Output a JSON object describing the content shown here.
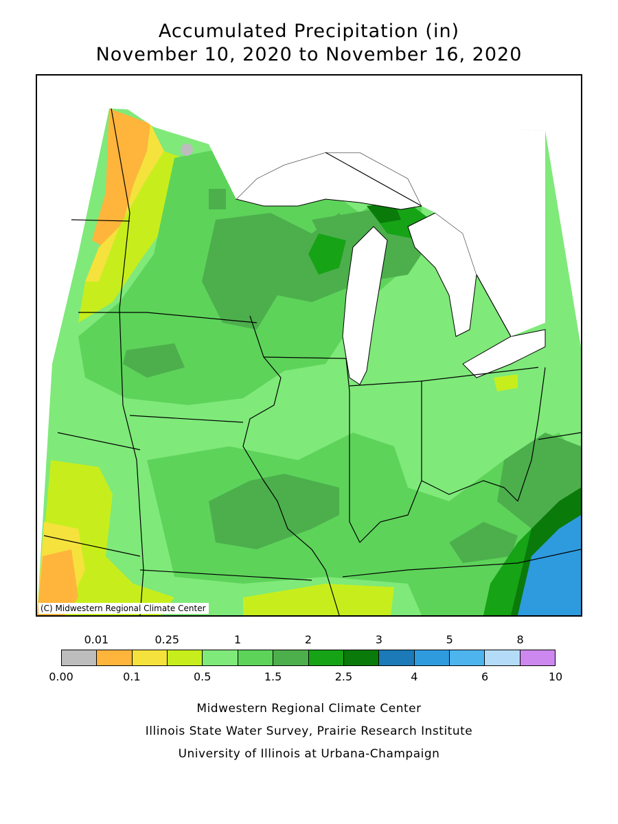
{
  "title": {
    "line1": "Accumulated Precipitation (in)",
    "line2": "November 10, 2020 to November 16, 2020"
  },
  "map": {
    "copyright": "(C) Midwestern Regional Climate Center",
    "colors": {
      "background_green": "#7FE97A",
      "medium_green": "#5DD35A",
      "dark_green": "#4CAF4C",
      "deep_green": "#16A316",
      "darkest_green": "#0A7A0A",
      "yellow_green": "#C7EE1C",
      "yellow": "#F5E23C",
      "orange": "#FFB43C",
      "gray": "#BDBDBD",
      "blue": "#2E9BDE",
      "lake": "#FFFFFF",
      "border": "#000000"
    }
  },
  "legend": {
    "colors": [
      "#BDBDBD",
      "#FFB43C",
      "#F5E23C",
      "#C7EE1C",
      "#7FE97A",
      "#5DD35A",
      "#4CAF4C",
      "#16A316",
      "#0A7A0A",
      "#1C7AB8",
      "#2E9BDE",
      "#4DB4EE",
      "#B4DCF8",
      "#CC88EE"
    ],
    "top_labels": [
      {
        "text": "0.01",
        "pos": 1
      },
      {
        "text": "0.25",
        "pos": 3
      },
      {
        "text": "1",
        "pos": 5
      },
      {
        "text": "2",
        "pos": 7
      },
      {
        "text": "3",
        "pos": 9
      },
      {
        "text": "5",
        "pos": 11
      },
      {
        "text": "8",
        "pos": 13
      }
    ],
    "bottom_labels": [
      {
        "text": "0.00",
        "pos": 0
      },
      {
        "text": "0.1",
        "pos": 2
      },
      {
        "text": "0.5",
        "pos": 4
      },
      {
        "text": "1.5",
        "pos": 6
      },
      {
        "text": "2.5",
        "pos": 8
      },
      {
        "text": "4",
        "pos": 10
      },
      {
        "text": "6",
        "pos": 12
      },
      {
        "text": "10",
        "pos": 14
      }
    ]
  },
  "credits": {
    "line1": "Midwestern Regional Climate Center",
    "line2": "Illinois State Water Survey, Prairie Research Institute",
    "line3": "University of Illinois at Urbana-Champaign"
  }
}
